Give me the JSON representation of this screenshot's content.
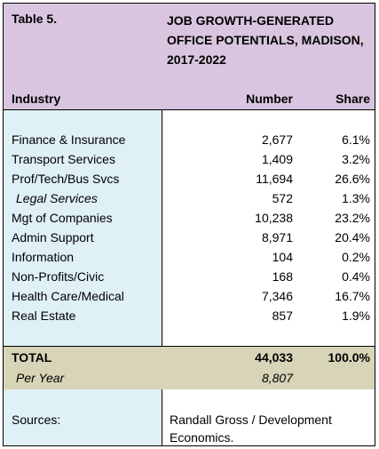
{
  "table_label": "Table 5.",
  "title": "JOB GROWTH-GENERATED OFFICE POTENTIALS, MADISON, 2017-2022",
  "headers": {
    "industry": "Industry",
    "number": "Number",
    "share": "Share"
  },
  "rows": [
    {
      "industry": "Finance & Insurance",
      "number": "2,677",
      "share": "6.1%"
    },
    {
      "industry": "Transport Services",
      "number": "1,409",
      "share": "3.2%"
    },
    {
      "industry": "Prof/Tech/Bus Svcs",
      "number": "11,694",
      "share": "26.6%"
    },
    {
      "industry": "Legal Services",
      "number": "572",
      "share": "1.3%"
    },
    {
      "industry": "Mgt of Companies",
      "number": "10,238",
      "share": "23.2%"
    },
    {
      "industry": "Admin Support",
      "number": "8,971",
      "share": "20.4%"
    },
    {
      "industry": "Information",
      "number": "104",
      "share": "0.2%"
    },
    {
      "industry": "Non-Profits/Civic",
      "number": "168",
      "share": "0.4%"
    },
    {
      "industry": "Health Care/Medical",
      "number": "7,346",
      "share": "16.7%"
    },
    {
      "industry": "Real Estate",
      "number": "857",
      "share": "1.9%"
    }
  ],
  "total": {
    "label": "TOTAL",
    "number": "44,033",
    "share": "100.0%"
  },
  "per_year": {
    "label": "Per Year",
    "number": "8,807"
  },
  "sources": {
    "label": "Sources:",
    "text_line1": "Randall Gross / Development",
    "text_line2": "Economics."
  },
  "colors": {
    "header_bg": "#d9c5df",
    "left_column_bg": "#dff0f7",
    "total_bg": "#d8d4b8"
  }
}
